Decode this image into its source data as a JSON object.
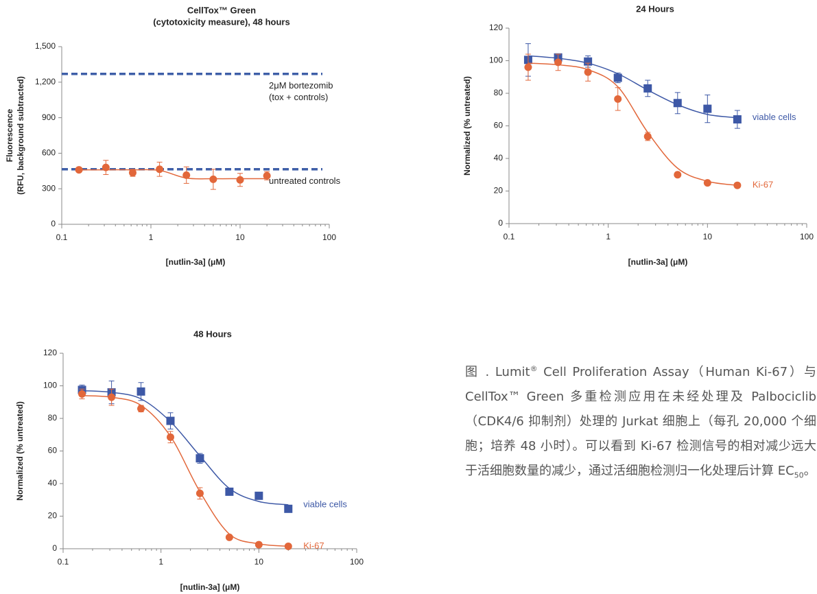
{
  "chart_data": [
    {
      "type": "line",
      "title": [
        "CellTox™ Green",
        "(cytotoxicity measure), 48 hours"
      ],
      "xlabel": "[nutlin-3a] (μM)",
      "ylabel": [
        "Fluorescence",
        "(RFU, background subtracted)"
      ],
      "xscale": "log",
      "xlim": [
        0.1,
        100
      ],
      "xticks": [
        0.1,
        1,
        10,
        100
      ],
      "ylim": [
        0,
        1500
      ],
      "yticks": [
        0,
        300,
        600,
        900,
        {
          "value": 1200,
          "label": "1,200"
        },
        {
          "value": 1500,
          "label": "1,500"
        }
      ],
      "x": [
        0.156,
        0.3125,
        0.625,
        1.25,
        2.5,
        5,
        10,
        20
      ],
      "series": [
        {
          "color": "#e2673a",
          "marker": "circle",
          "values": [
            460,
            480,
            435,
            465,
            415,
            380,
            375,
            410
          ],
          "errors": [
            10,
            60,
            30,
            60,
            70,
            85,
            55,
            35
          ],
          "fit": [
            460,
            460,
            460,
            455,
            390,
            385,
            385,
            385
          ]
        }
      ],
      "reference_lines": [
        {
          "value": 1270,
          "color": "#3f5fa8",
          "label": [
            "2μM bortezomib",
            "(tox + controls)"
          ]
        },
        {
          "value": 465,
          "color": "#3f5fa8",
          "label": [
            "untreated controls"
          ]
        }
      ]
    },
    {
      "type": "line",
      "title": [
        "24 Hours"
      ],
      "xlabel": "[nutlin-3a] (μM)",
      "ylabel": [
        "Normalized (% untreated)"
      ],
      "xscale": "log",
      "xlim": [
        0.1,
        100
      ],
      "xticks": [
        0.1,
        1,
        10,
        100
      ],
      "ylim": [
        0,
        120
      ],
      "yticks": [
        0,
        20,
        40,
        60,
        80,
        100,
        120
      ],
      "x": [
        0.156,
        0.3125,
        0.625,
        1.25,
        2.5,
        5,
        10,
        20
      ],
      "series": [
        {
          "name": "viable cells",
          "color": "#3d58a6",
          "marker": "square",
          "values": [
            100.5,
            102,
            99.5,
            89.5,
            83,
            74,
            70.5,
            64
          ],
          "errors": [
            10,
            2,
            3.5,
            3,
            5,
            6.5,
            8.5,
            5.5
          ],
          "fit": [
            103,
            101.5,
            98.5,
            92,
            82,
            73,
            67,
            65
          ]
        },
        {
          "name": "Ki-67",
          "color": "#e2673a",
          "marker": "circle",
          "values": [
            96,
            99,
            93,
            76.5,
            53.5,
            30,
            25,
            23.5
          ],
          "errors": [
            8,
            5,
            5.5,
            7,
            2.5,
            1,
            1,
            1
          ],
          "fit": [
            98.5,
            97.5,
            94.5,
            84,
            56,
            34,
            26,
            23.5
          ]
        }
      ]
    },
    {
      "type": "line",
      "title": [
        "48 Hours"
      ],
      "xlabel": "[nutlin-3a] (μM)",
      "ylabel": [
        "Normalized (% untreated)"
      ],
      "xscale": "log",
      "xlim": [
        0.1,
        100
      ],
      "xticks": [
        0.1,
        1,
        10,
        100
      ],
      "ylim": [
        0,
        120
      ],
      "yticks": [
        0,
        20,
        40,
        60,
        80,
        100,
        120
      ],
      "x": [
        0.156,
        0.3125,
        0.625,
        1.25,
        2.5,
        5,
        10,
        20
      ],
      "series": [
        {
          "name": "viable cells",
          "color": "#3d58a6",
          "marker": "square",
          "values": [
            97.5,
            96,
            96.5,
            78.5,
            55.5,
            35,
            32.5,
            24.5
          ],
          "errors": [
            3,
            7,
            5.5,
            5,
            3,
            1,
            1,
            1
          ],
          "fit": [
            97,
            96,
            92,
            78,
            57,
            37,
            29,
            27
          ]
        },
        {
          "name": "Ki-67",
          "color": "#e2673a",
          "marker": "circle",
          "values": [
            95,
            93,
            86,
            68.5,
            34,
            7,
            2.5,
            1.5
          ],
          "errors": [
            3,
            5,
            2,
            3.5,
            3.5,
            1,
            1,
            1
          ],
          "fit": [
            94,
            93,
            88,
            69,
            35,
            9,
            3,
            1.5
          ]
        }
      ]
    }
  ],
  "caption": [
    "图 . Lumit",
    "®",
    " Cell Proliferation Assay（Human Ki-67）与 CellTox™ Green 多重检测应用在未经处理及 Palbociclib（CDK4/6 抑制剂）处理的 Jurkat 细胞上（每孔 20,000 个细胞；培养 48 小时）。可以看到 Ki-67 检测信号的相对减少远大于活细胞数量的减少，通过活细胞检测归一化处理后计算 EC",
    "50",
    "。"
  ]
}
